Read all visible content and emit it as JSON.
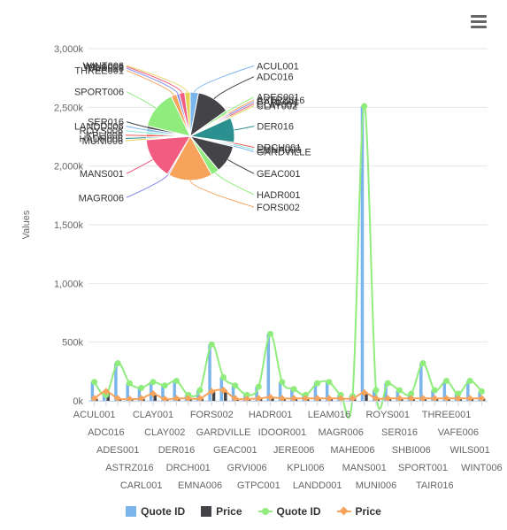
{
  "colors": {
    "quote_bar": "#7cb5ec",
    "price_bar": "#434348",
    "quote_line": "#90ed7d",
    "price_line": "#f7a35c",
    "pie": [
      "#7cb5ec",
      "#434348",
      "#90ed7d",
      "#f7a35c",
      "#8085e9",
      "#f15c80",
      "#e4d354",
      "#2b908f",
      "#f45b5b",
      "#91e8e1"
    ]
  },
  "legend": [
    {
      "label": "Quote ID",
      "symbol": "bar",
      "color": "#7cb5ec"
    },
    {
      "label": "Price",
      "symbol": "bar",
      "color": "#434348"
    },
    {
      "label": "Quote ID",
      "symbol": "line-dot",
      "color": "#90ed7d"
    },
    {
      "label": "Price",
      "symbol": "line-diamond",
      "color": "#f7a35c"
    }
  ],
  "chart_data": [
    {
      "type": "bar",
      "ylabel": "Values",
      "ylim": [
        0,
        3000000
      ],
      "yticks": [
        "0k",
        "500k",
        "1,000k",
        "1,500k",
        "2,000k",
        "2,500k",
        "3,000k"
      ],
      "grid": true,
      "x_tick_labels": [
        "ACUL001",
        "ADC016",
        "ADES001",
        "ASTRZ016",
        "CARL001",
        "CLAY001",
        "CLAY002",
        "DER016",
        "DRCH001",
        "EMNA006",
        "FORS002",
        "GARDVILLE",
        "GEAC001",
        "GRVI006",
        "GTPC001",
        "HADR001",
        "IDOOR001",
        "JERE006",
        "KPLI006",
        "LANDD001",
        "LEAM016",
        "MAGR006",
        "MAHE006",
        "MANS001",
        "MUNI006",
        "ROYS001",
        "SER016",
        "SHBI006",
        "SPORT001",
        "TAIR016",
        "THREE001",
        "VAFE006",
        "WILS001",
        "WINT006"
      ],
      "legend_position": "bottom",
      "series": [
        {
          "name": "Quote ID",
          "type": "column",
          "values": [
            160000,
            50000,
            320000,
            150000,
            110000,
            160000,
            130000,
            170000,
            50000,
            90000,
            480000,
            200000,
            130000,
            50000,
            120000,
            570000,
            160000,
            100000,
            50000,
            150000,
            160000,
            50000,
            40000,
            2510000,
            90000,
            150000,
            90000,
            60000,
            320000,
            90000,
            170000,
            60000,
            170000,
            80000
          ]
        },
        {
          "name": "Price",
          "type": "column",
          "values": [
            20000,
            80000,
            20000,
            15000,
            20000,
            60000,
            15000,
            20000,
            20000,
            20000,
            80000,
            90000,
            20000,
            15000,
            20000,
            30000,
            20000,
            20000,
            20000,
            20000,
            20000,
            20000,
            20000,
            70000,
            20000,
            20000,
            20000,
            20000,
            20000,
            20000,
            20000,
            20000,
            20000,
            20000
          ]
        },
        {
          "name": "Quote ID",
          "type": "line",
          "values": [
            160000,
            50000,
            320000,
            150000,
            110000,
            160000,
            130000,
            170000,
            50000,
            90000,
            480000,
            200000,
            130000,
            50000,
            120000,
            570000,
            160000,
            100000,
            50000,
            150000,
            160000,
            50000,
            40000,
            2510000,
            90000,
            150000,
            90000,
            60000,
            320000,
            90000,
            170000,
            60000,
            170000,
            80000
          ]
        },
        {
          "name": "Price",
          "type": "line",
          "values": [
            20000,
            80000,
            20000,
            15000,
            20000,
            60000,
            15000,
            20000,
            20000,
            20000,
            80000,
            90000,
            20000,
            15000,
            20000,
            30000,
            20000,
            20000,
            20000,
            20000,
            20000,
            20000,
            20000,
            70000,
            20000,
            20000,
            20000,
            20000,
            20000,
            20000,
            20000,
            20000,
            20000,
            20000
          ]
        }
      ]
    },
    {
      "type": "pie",
      "slices": [
        {
          "label": "ACUL001",
          "value": 3
        },
        {
          "label": "ADC016",
          "value": 12
        },
        {
          "label": "ADES001",
          "value": 1
        },
        {
          "label": "ASTRZ016",
          "value": 0.5
        },
        {
          "label": "CARL001",
          "value": 0.5
        },
        {
          "label": "CLAY001",
          "value": 0.5
        },
        {
          "label": "CLAY002",
          "value": 0.5
        },
        {
          "label": "DER016",
          "value": 9
        },
        {
          "label": "DRCH001",
          "value": 0.5
        },
        {
          "label": "EMNA006",
          "value": 0.5
        },
        {
          "label": "GARDVILLE",
          "value": 0.5
        },
        {
          "label": "GEAC001",
          "value": 10
        },
        {
          "label": "HADR001",
          "value": 3
        },
        {
          "label": "FORS002",
          "value": 16
        },
        {
          "label": "MAGR006",
          "value": 0.5
        },
        {
          "label": "MANS001",
          "value": 15
        },
        {
          "label": "MUNI006",
          "value": 0.5
        },
        {
          "label": "HADR006",
          "value": 0.5
        },
        {
          "label": "KPLI006",
          "value": 1
        },
        {
          "label": "ROYS006",
          "value": 1
        },
        {
          "label": "LANDD006",
          "value": 1
        },
        {
          "label": "SER016",
          "value": 1
        },
        {
          "label": "SPORT006",
          "value": 14
        },
        {
          "label": "THREE001",
          "value": 2
        },
        {
          "label": "TAIR016",
          "value": 1
        },
        {
          "label": "WILS006",
          "value": 2
        },
        {
          "label": "WINT006",
          "value": 2
        }
      ]
    }
  ]
}
